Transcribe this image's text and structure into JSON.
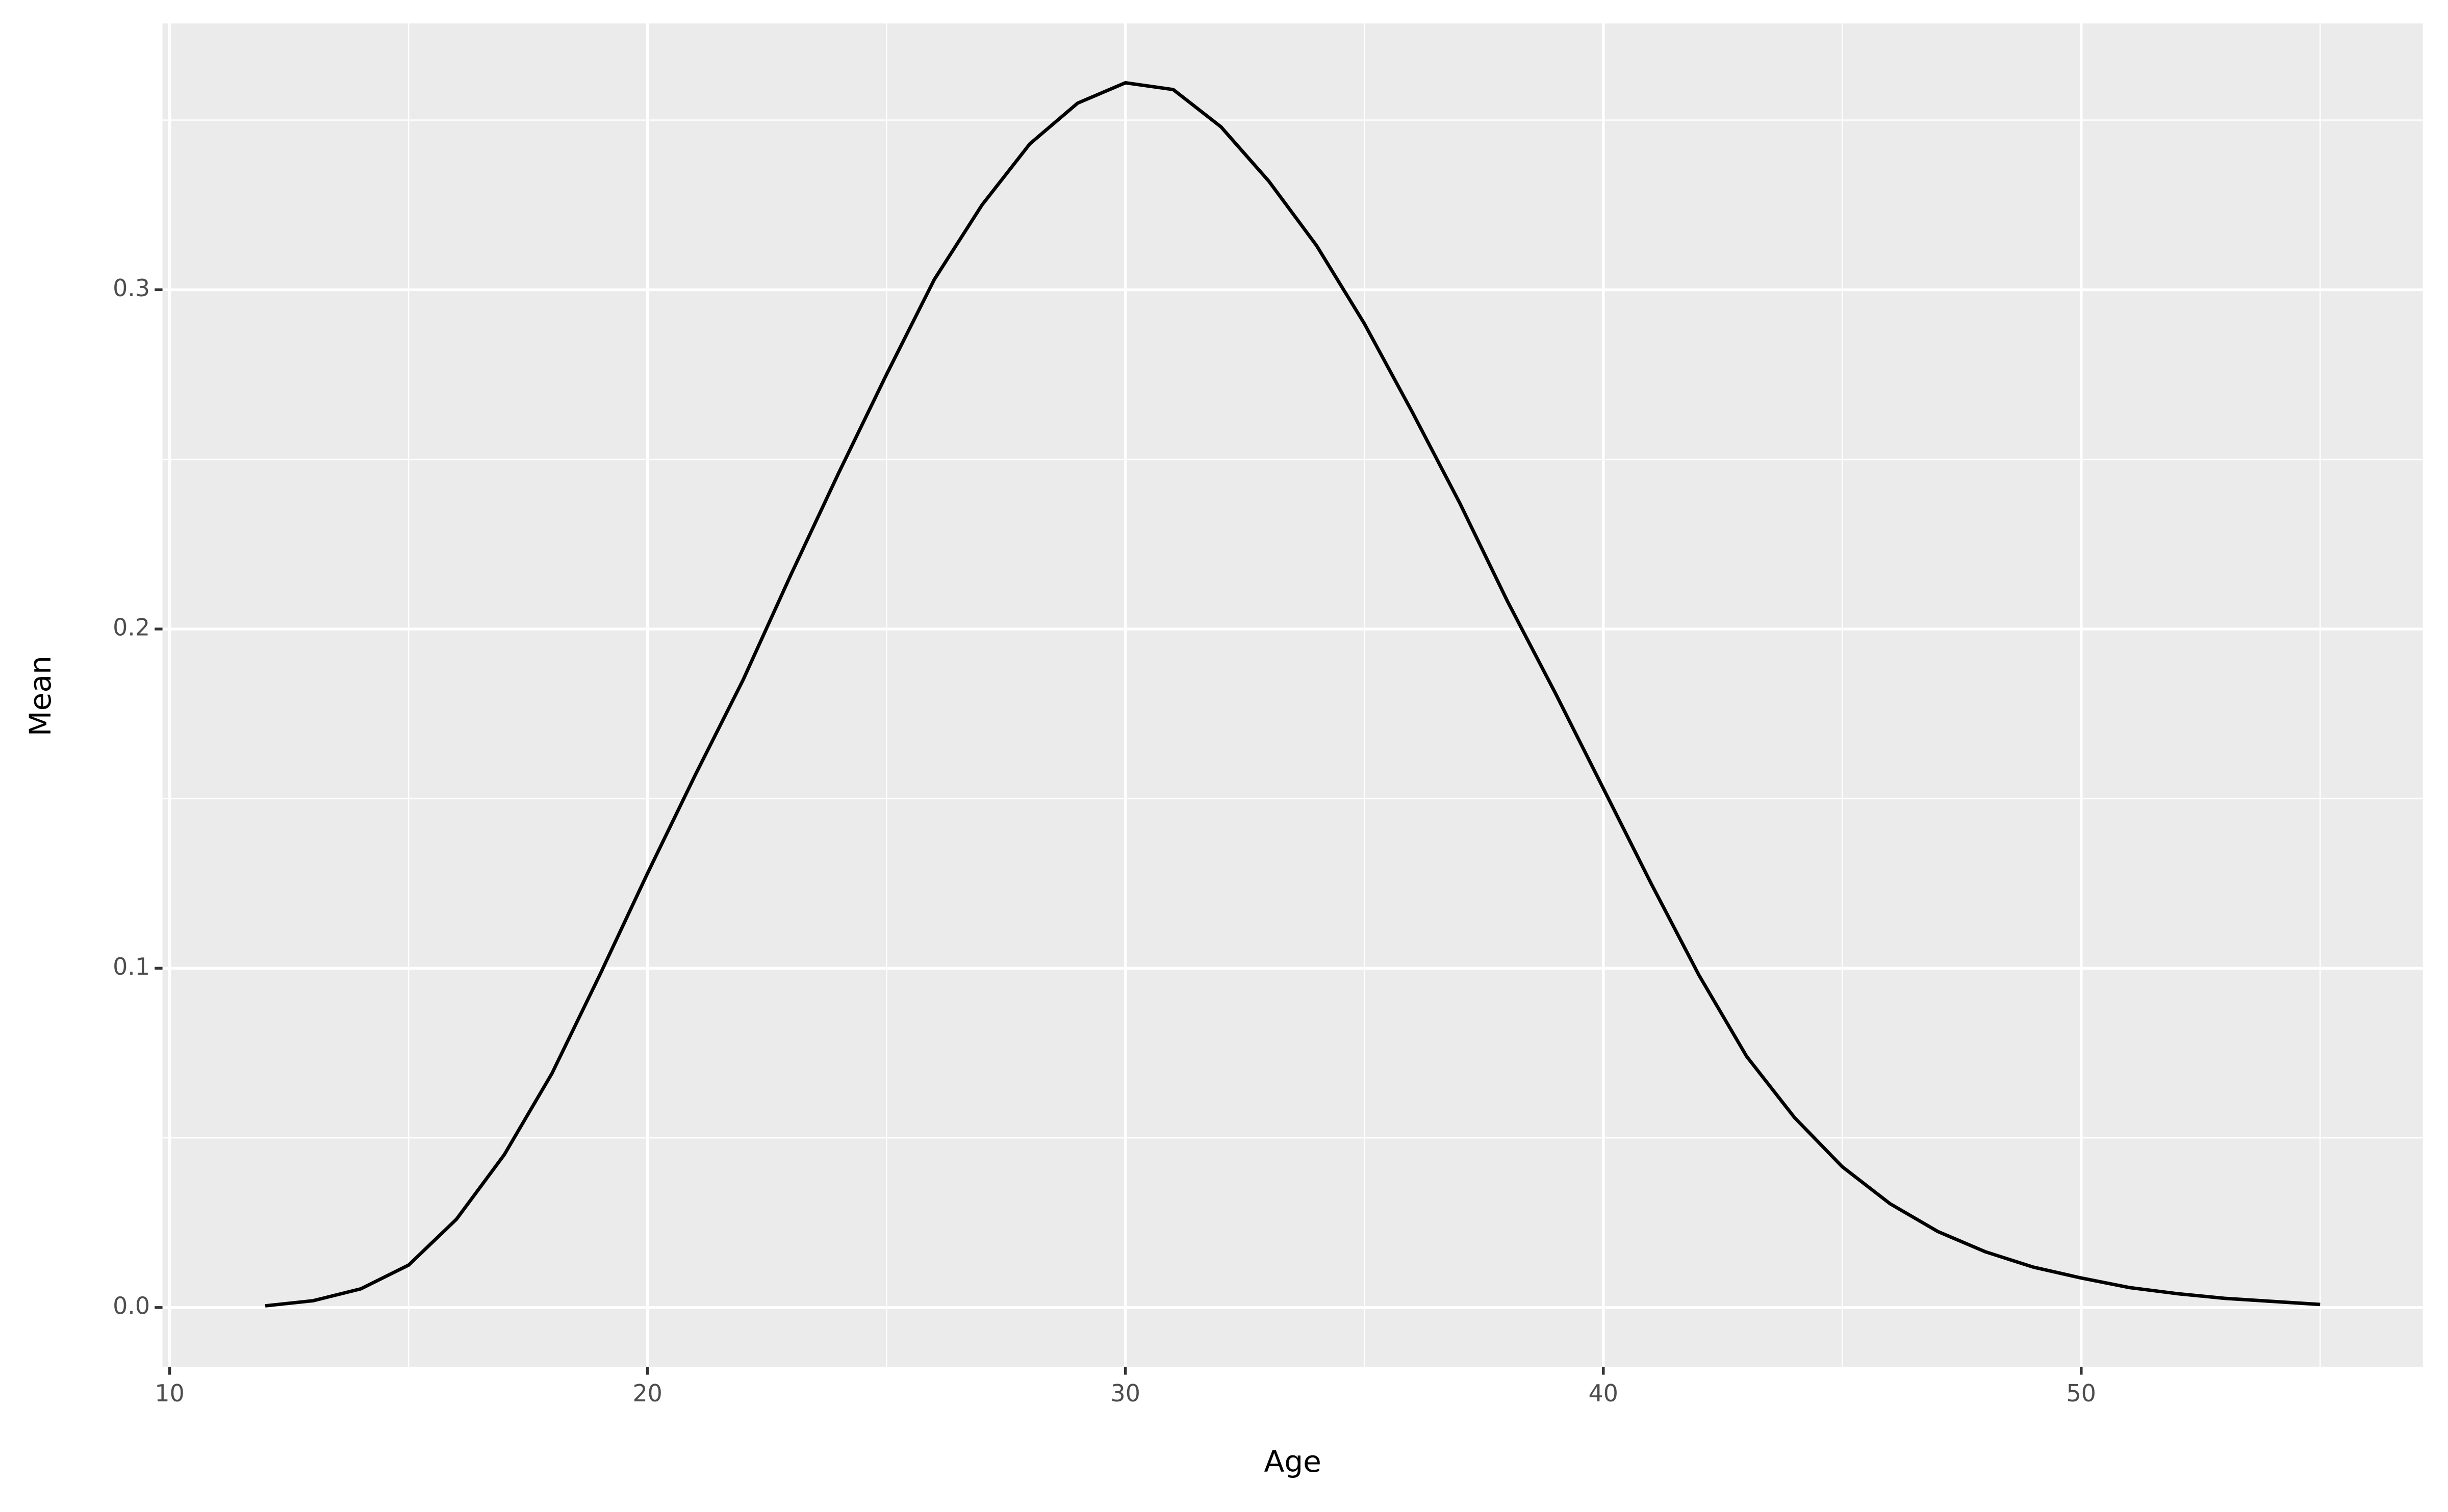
{
  "chart_data": {
    "type": "line",
    "x_label": "Age",
    "y_label": "Mean",
    "x": [
      12,
      13,
      14,
      15,
      16,
      17,
      18,
      19,
      20,
      21,
      22,
      23,
      24,
      25,
      26,
      27,
      28,
      29,
      30,
      31,
      32,
      33,
      34,
      35,
      36,
      37,
      38,
      39,
      40,
      41,
      42,
      43,
      44,
      45,
      46,
      47,
      48,
      49,
      50,
      51,
      52,
      53,
      54,
      55
    ],
    "series": [
      {
        "name": "Mean",
        "color": "#000000",
        "values": [
          0.0005,
          0.002,
          0.0055,
          0.0125,
          0.026,
          0.045,
          0.069,
          0.098,
          0.128,
          0.157,
          0.185,
          0.216,
          0.246,
          0.275,
          0.303,
          0.325,
          0.343,
          0.355,
          0.361,
          0.359,
          0.348,
          0.332,
          0.313,
          0.29,
          0.264,
          0.237,
          0.208,
          0.181,
          0.153,
          0.125,
          0.098,
          0.074,
          0.056,
          0.0415,
          0.0306,
          0.0224,
          0.0164,
          0.0119,
          0.0087,
          0.0059,
          0.0041,
          0.0027,
          0.0018,
          0.0009
        ]
      }
    ],
    "xlim": [
      9.85,
      57.15
    ],
    "ylim": [
      -0.0175,
      0.3785
    ],
    "xticks": [
      10,
      20,
      30,
      40,
      50
    ],
    "yticks": [
      {
        "value": 0,
        "label": "0.0"
      },
      0.1,
      0.2,
      0.3
    ],
    "xminorticks": [
      15,
      25,
      35,
      45,
      55
    ],
    "yminorticks": [
      0.05,
      0.15,
      0.25,
      0.35
    ],
    "grid": true,
    "background": "#ebebeb"
  }
}
